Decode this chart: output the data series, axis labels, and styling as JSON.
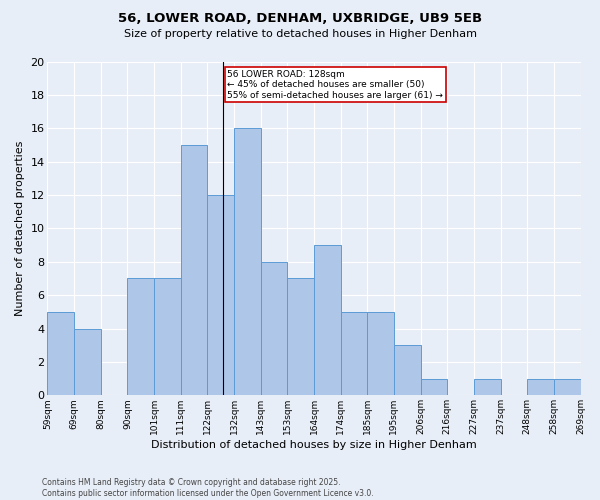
{
  "title1": "56, LOWER ROAD, DENHAM, UXBRIDGE, UB9 5EB",
  "title2": "Size of property relative to detached houses in Higher Denham",
  "xlabel": "Distribution of detached houses by size in Higher Denham",
  "ylabel": "Number of detached properties",
  "bar_values": [
    5,
    4,
    0,
    7,
    7,
    15,
    12,
    16,
    8,
    7,
    9,
    5,
    5,
    3,
    1,
    0,
    1,
    0,
    1,
    1
  ],
  "bin_labels": [
    "59sqm",
    "69sqm",
    "80sqm",
    "90sqm",
    "101sqm",
    "111sqm",
    "122sqm",
    "132sqm",
    "143sqm",
    "153sqm",
    "164sqm",
    "174sqm",
    "185sqm",
    "195sqm",
    "206sqm",
    "216sqm",
    "227sqm",
    "237sqm",
    "248sqm",
    "258sqm",
    "269sqm"
  ],
  "bar_color": "#aec6e8",
  "bar_edge_color": "#5b9bd5",
  "bg_color": "#e8eef7",
  "grid_color": "#ffffff",
  "annotation_text": "56 LOWER ROAD: 128sqm\n← 45% of detached houses are smaller (50)\n55% of semi-detached houses are larger (61) →",
  "annotation_box_color": "#ffffff",
  "annotation_border_color": "#cc0000",
  "footer_text": "Contains HM Land Registry data © Crown copyright and database right 2025.\nContains public sector information licensed under the Open Government Licence v3.0.",
  "ylim": [
    0,
    20
  ],
  "yticks": [
    0,
    2,
    4,
    6,
    8,
    10,
    12,
    14,
    16,
    18,
    20
  ]
}
